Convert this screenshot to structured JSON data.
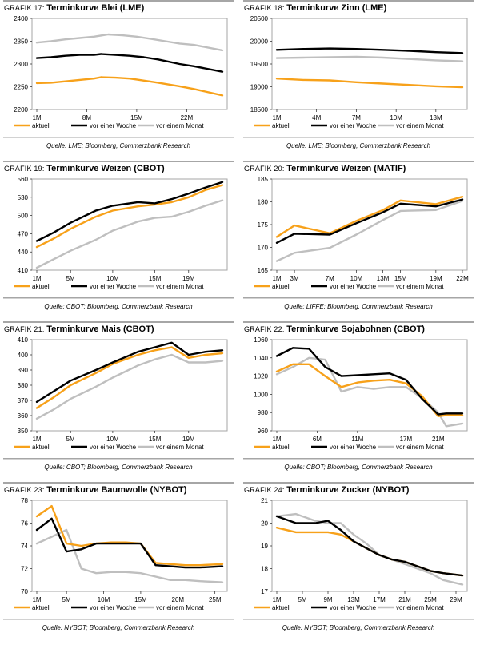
{
  "page": {
    "legend_labels": [
      "aktuell",
      "vor einer Woche",
      "vor einem Monat"
    ]
  },
  "colors": {
    "aktuell": "#f7a11a",
    "vor_einer_woche": "#000000",
    "vor_einem_monat": "#bfbfbf",
    "frame": "#a6a6a6"
  },
  "chart_data": [
    {
      "id": "g17",
      "type": "line",
      "title_prefix": "GRAFIK 17:",
      "title": "Terminkurve Blei (LME)",
      "x_labels": [
        "1M",
        "8M",
        "15M",
        "22M"
      ],
      "x_label_pos": [
        1,
        8,
        15,
        22
      ],
      "xlim": [
        1,
        27
      ],
      "y_ticks": [
        "2200",
        "2250",
        "2300",
        "2350",
        "2400"
      ],
      "ylim": [
        2200,
        2400
      ],
      "series": [
        {
          "name": "aktuell",
          "x": [
            1,
            3,
            5,
            7,
            9,
            10,
            12,
            14,
            15,
            18,
            21,
            23,
            27
          ],
          "y": [
            2258,
            2259,
            2262,
            2265,
            2268,
            2271,
            2270,
            2268,
            2266,
            2259,
            2251,
            2245,
            2231
          ]
        },
        {
          "name": "vor einer Woche",
          "x": [
            1,
            3,
            5,
            7,
            9,
            10,
            12,
            14,
            16,
            18,
            21,
            23,
            27
          ],
          "y": [
            2313,
            2315,
            2318,
            2320,
            2320,
            2322,
            2320,
            2318,
            2315,
            2310,
            2300,
            2295,
            2283
          ]
        },
        {
          "name": "vor einem Monat",
          "x": [
            1,
            3,
            5,
            7,
            9,
            11,
            13,
            15,
            17,
            19,
            21,
            23,
            27
          ],
          "y": [
            2347,
            2350,
            2354,
            2357,
            2360,
            2365,
            2363,
            2360,
            2355,
            2350,
            2345,
            2342,
            2330
          ]
        }
      ],
      "source": "Quelle: LME; Bloomberg, Commerzbank Research"
    },
    {
      "id": "g18",
      "type": "line",
      "title_prefix": "GRAFIK 18:",
      "title": "Terminkurve Zinn (LME)",
      "x_labels": [
        "1M",
        "4M",
        "7M",
        "10M",
        "13M"
      ],
      "x_label_pos": [
        1,
        4,
        7,
        10,
        13
      ],
      "xlim": [
        1,
        15
      ],
      "y_ticks": [
        "18500",
        "19000",
        "19500",
        "20000",
        "20500"
      ],
      "ylim": [
        18500,
        20500
      ],
      "series": [
        {
          "name": "aktuell",
          "x": [
            1,
            3,
            5,
            7,
            9,
            11,
            13,
            15
          ],
          "y": [
            19180,
            19150,
            19140,
            19100,
            19070,
            19040,
            19010,
            18990
          ]
        },
        {
          "name": "vor einer Woche",
          "x": [
            1,
            3,
            5,
            7,
            9,
            11,
            13,
            15
          ],
          "y": [
            19810,
            19830,
            19840,
            19830,
            19810,
            19790,
            19760,
            19740
          ]
        },
        {
          "name": "vor einem Monat",
          "x": [
            1,
            3,
            5,
            7,
            9,
            11,
            13,
            15
          ],
          "y": [
            19630,
            19640,
            19650,
            19660,
            19640,
            19610,
            19580,
            19560
          ]
        }
      ],
      "source": "Quelle: LME; Bloomberg, Commerzbank Research"
    },
    {
      "id": "g19",
      "type": "line",
      "title_prefix": "GRAFIK 19:",
      "title": "Terminkurve Weizen (CBOT)",
      "x_labels": [
        "1M",
        "5M",
        "10M",
        "15M",
        "19M"
      ],
      "x_label_pos": [
        1,
        5,
        10,
        15,
        19
      ],
      "xlim": [
        1,
        23
      ],
      "y_ticks": [
        "410",
        "440",
        "470",
        "500",
        "530",
        "560"
      ],
      "ylim": [
        410,
        560
      ],
      "series": [
        {
          "name": "aktuell",
          "x": [
            1,
            3,
            5,
            8,
            10,
            13,
            15,
            17,
            19,
            21,
            23
          ],
          "y": [
            448,
            462,
            478,
            498,
            508,
            515,
            518,
            522,
            530,
            542,
            550
          ]
        },
        {
          "name": "vor einer Woche",
          "x": [
            1,
            3,
            5,
            8,
            10,
            13,
            15,
            17,
            19,
            21,
            23
          ],
          "y": [
            458,
            472,
            488,
            508,
            516,
            522,
            520,
            527,
            536,
            546,
            555
          ]
        },
        {
          "name": "vor einem Monat",
          "x": [
            1,
            3,
            5,
            8,
            10,
            13,
            15,
            17,
            19,
            21,
            23
          ],
          "y": [
            414,
            428,
            442,
            460,
            475,
            490,
            496,
            498,
            506,
            516,
            525
          ]
        }
      ],
      "source": "Quelle: CBOT; Bloomberg, Commerzbank Research"
    },
    {
      "id": "g20",
      "type": "line",
      "title_prefix": "GRAFIK 20:",
      "title": "Terminkurve Weizen (MATIF)",
      "x_labels": [
        "1M",
        "3M",
        "7M",
        "10M",
        "13M",
        "15M",
        "19M",
        "22M"
      ],
      "x_label_pos": [
        1,
        3,
        7,
        10,
        13,
        15,
        19,
        22
      ],
      "xlim": [
        1,
        22
      ],
      "y_ticks": [
        "165",
        "170",
        "175",
        "180",
        "185"
      ],
      "ylim": [
        165,
        185
      ],
      "series": [
        {
          "name": "aktuell",
          "x": [
            1,
            3,
            7,
            10,
            13,
            15,
            19,
            22
          ],
          "y": [
            172.3,
            174.8,
            173.1,
            175.8,
            178.2,
            180.3,
            179.5,
            181.1
          ]
        },
        {
          "name": "vor einer Woche",
          "x": [
            1,
            3,
            7,
            10,
            13,
            15,
            19,
            22
          ],
          "y": [
            171.0,
            173.0,
            172.8,
            175.3,
            177.7,
            179.6,
            179.0,
            180.5
          ]
        },
        {
          "name": "vor einem Monat",
          "x": [
            1,
            3,
            7,
            10,
            13,
            15,
            19,
            22
          ],
          "y": [
            167.0,
            168.8,
            169.9,
            172.8,
            176.0,
            178.0,
            178.2,
            180.2
          ]
        }
      ],
      "source": "Quelle: LIFFE; Bloomberg, Commerzbank Research"
    },
    {
      "id": "g21",
      "type": "line",
      "title_prefix": "GRAFIK 21:",
      "title": "Terminkurve Mais (CBOT)",
      "x_labels": [
        "1M",
        "5M",
        "10M",
        "15M",
        "19M"
      ],
      "x_label_pos": [
        1,
        5,
        10,
        15,
        19
      ],
      "xlim": [
        1,
        23
      ],
      "y_ticks": [
        "350",
        "360",
        "370",
        "380",
        "390",
        "400",
        "410"
      ],
      "ylim": [
        350,
        410
      ],
      "series": [
        {
          "name": "aktuell",
          "x": [
            1,
            3,
            5,
            8,
            10,
            13,
            15,
            17,
            19,
            21,
            23
          ],
          "y": [
            365,
            372,
            380,
            388,
            394,
            400,
            403,
            405,
            398,
            400,
            401
          ]
        },
        {
          "name": "vor einer Woche",
          "x": [
            1,
            3,
            5,
            8,
            10,
            13,
            15,
            17,
            19,
            21,
            23
          ],
          "y": [
            369,
            376,
            383,
            390,
            395,
            402,
            405,
            408,
            400,
            402,
            403
          ]
        },
        {
          "name": "vor einem Monat",
          "x": [
            1,
            3,
            5,
            8,
            10,
            13,
            15,
            17,
            19,
            21,
            23
          ],
          "y": [
            358,
            364,
            371,
            379,
            385,
            393,
            397,
            400,
            395,
            395,
            396
          ]
        }
      ],
      "source": "Quelle: CBOT; Bloomberg, Commerzbank Research"
    },
    {
      "id": "g22",
      "type": "line",
      "title_prefix": "GRAFIK 22:",
      "title": "Terminkurve Sojabohnen (CBOT)",
      "x_labels": [
        "1M",
        "6M",
        "11M",
        "17M",
        "21M"
      ],
      "x_label_pos": [
        1,
        6,
        11,
        17,
        21
      ],
      "xlim": [
        1,
        24
      ],
      "y_ticks": [
        "960",
        "980",
        "1000",
        "1020",
        "1040",
        "1060"
      ],
      "ylim": [
        960,
        1060
      ],
      "series": [
        {
          "name": "aktuell",
          "x": [
            1,
            3,
            5,
            7,
            9,
            11,
            13,
            15,
            17,
            19,
            21,
            22,
            24
          ],
          "y": [
            1025,
            1033,
            1033,
            1020,
            1008,
            1013,
            1015,
            1016,
            1012,
            998,
            976,
            977,
            977
          ]
        },
        {
          "name": "vor einer Woche",
          "x": [
            1,
            3,
            5,
            7,
            9,
            11,
            13,
            15,
            17,
            19,
            21,
            22,
            24
          ],
          "y": [
            1042,
            1051,
            1050,
            1030,
            1020,
            1021,
            1022,
            1023,
            1016,
            995,
            978,
            979,
            979
          ]
        },
        {
          "name": "vor einem Monat",
          "x": [
            1,
            3,
            5,
            7,
            9,
            11,
            13,
            15,
            17,
            19,
            21,
            22,
            24
          ],
          "y": [
            1022,
            1030,
            1040,
            1038,
            1003,
            1008,
            1006,
            1008,
            1008,
            996,
            980,
            965,
            968
          ]
        }
      ],
      "source": "Quelle: CBOT; Bloomberg, Commerzbank Research"
    },
    {
      "id": "g23",
      "type": "line",
      "title_prefix": "GRAFIK 23:",
      "title": "Terminkurve Baumwolle (NYBOT)",
      "x_labels": [
        "1M",
        "5M",
        "10M",
        "15M",
        "20M",
        "25M"
      ],
      "x_label_pos": [
        1,
        5,
        10,
        15,
        20,
        25
      ],
      "xlim": [
        1,
        26
      ],
      "y_ticks": [
        "70",
        "72",
        "74",
        "76",
        "78"
      ],
      "ylim": [
        70,
        78
      ],
      "series": [
        {
          "name": "aktuell",
          "x": [
            1,
            3,
            5,
            7,
            9,
            11,
            13,
            15,
            17,
            19,
            21,
            23,
            26
          ],
          "y": [
            76.6,
            77.5,
            74.2,
            74.0,
            74.2,
            74.3,
            74.3,
            74.2,
            72.5,
            72.4,
            72.3,
            72.3,
            72.4
          ]
        },
        {
          "name": "vor einer Woche",
          "x": [
            1,
            3,
            5,
            7,
            9,
            11,
            13,
            15,
            17,
            19,
            21,
            23,
            26
          ],
          "y": [
            75.4,
            76.4,
            73.5,
            73.7,
            74.2,
            74.2,
            74.2,
            74.2,
            72.3,
            72.2,
            72.1,
            72.1,
            72.2
          ]
        },
        {
          "name": "vor einem Monat",
          "x": [
            1,
            3,
            5,
            7,
            9,
            11,
            13,
            15,
            17,
            19,
            21,
            23,
            26
          ],
          "y": [
            74.2,
            74.8,
            75.4,
            72.0,
            71.6,
            71.7,
            71.7,
            71.6,
            71.3,
            71.0,
            71.0,
            70.9,
            70.8
          ]
        }
      ],
      "source": "Quelle: NYBOT; Bloomberg, Commerzbank Research"
    },
    {
      "id": "g24",
      "type": "line",
      "title_prefix": "GRAFIK 24:",
      "title": "Terminkurve Zucker (NYBOT)",
      "x_labels": [
        "1M",
        "5M",
        "9M",
        "13M",
        "17M",
        "21M",
        "25M",
        "29M"
      ],
      "x_label_pos": [
        1,
        5,
        9,
        13,
        17,
        21,
        25,
        29
      ],
      "xlim": [
        1,
        30
      ],
      "y_ticks": [
        "17",
        "18",
        "19",
        "20",
        "21"
      ],
      "ylim": [
        17,
        21
      ],
      "series": [
        {
          "name": "aktuell",
          "x": [
            1,
            4,
            7,
            9,
            11,
            13,
            15,
            17,
            19,
            21,
            23,
            25,
            27,
            30
          ],
          "y": [
            19.8,
            19.6,
            19.6,
            19.6,
            19.5,
            19.2,
            18.9,
            18.6,
            18.4,
            18.3,
            18.1,
            17.9,
            17.8,
            17.7
          ]
        },
        {
          "name": "vor einer Woche",
          "x": [
            1,
            4,
            7,
            9,
            11,
            13,
            15,
            17,
            19,
            21,
            23,
            25,
            27,
            30
          ],
          "y": [
            20.3,
            20.0,
            20.0,
            20.1,
            19.7,
            19.2,
            18.9,
            18.6,
            18.4,
            18.3,
            18.1,
            17.9,
            17.8,
            17.7
          ]
        },
        {
          "name": "vor einem Monat",
          "x": [
            1,
            4,
            7,
            9,
            11,
            13,
            15,
            17,
            19,
            21,
            23,
            25,
            27,
            30
          ],
          "y": [
            20.3,
            20.4,
            20.1,
            20.0,
            20.0,
            19.5,
            19.1,
            18.6,
            18.4,
            18.2,
            18.0,
            17.8,
            17.5,
            17.3
          ]
        }
      ],
      "source": "Quelle: NYBOT; Bloomberg, Commerzbank Research"
    }
  ]
}
